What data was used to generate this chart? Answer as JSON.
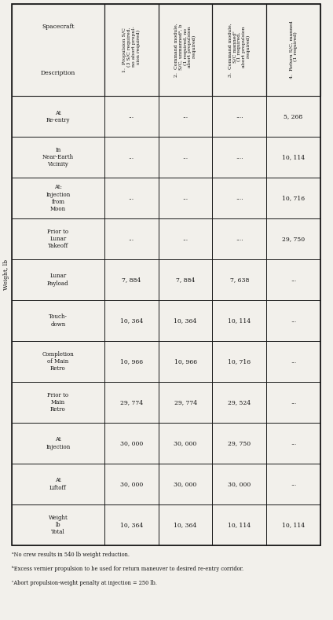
{
  "title_above": "Weight, lb",
  "col_headers": [
    "Spacecraft\nDescription",
    "Weight\nlb\nTotal",
    "At\nLiftoff",
    "At\nInjection",
    "Prior to\nMain\nRetro",
    "Completion\nof Main\nRetro",
    "Touch-\ndown",
    "Lunar\nPayload",
    "Prior to\nLunar\nTakeoff",
    "At:\nInjection\nfrom\nMoon",
    "In\nNear-Earth\nVicinity",
    "At\nRe-entry"
  ],
  "spacecraft_header_top": "Spacecraft",
  "spacecraft_header_bot": "Description",
  "weight_lb_header": "Weight, lb",
  "rows": [
    {
      "num": "1.",
      "desc": "Propulsion S/C\n(3 S/C required,\nno abort propul-\nsion required)",
      "vals": [
        "10, 364",
        "30, 000",
        "30, 000",
        "29, 774",
        "10, 966",
        "10, 364",
        "7, 884",
        "...",
        "...",
        "...",
        "..."
      ]
    },
    {
      "num": "2.",
      "desc": "Command module,\nS/C, unmannedᵃ, b\n(1 required, no\nabort propulsion\nrequired)",
      "vals": [
        "10, 364",
        "30, 000",
        "30, 000",
        "29, 774",
        "10, 966",
        "10, 364",
        "7, 884",
        "...",
        "...",
        "...",
        "..."
      ]
    },
    {
      "num": "3.",
      "desc": "Command module,\nS/C mannedᶜ\n(1 required,\nabort propulsion\nrequired)",
      "vals": [
        "10, 114",
        "30, 000",
        "29, 750",
        "29, 524",
        "10, 716",
        "10, 114",
        "7, 638",
        "...",
        "...",
        "...",
        "..."
      ]
    },
    {
      "num": "4.",
      "desc": "Return S/C, manned\n(1 required)",
      "vals": [
        "10, 114",
        "...",
        "...",
        "...",
        "...",
        "...",
        "...",
        "29, 750",
        "10, 716",
        "10, 114",
        "5, 268"
      ]
    }
  ],
  "footnotes": [
    "ᵃNo crew results in 540 lb weight reduction.",
    "ᵇExcess vernier propulsion to be used for return maneuver to desired re-entry corridor.",
    "ᶜAbort propulsion-weight penalty at injection = 250 lb."
  ],
  "bg_color": "#f2f0eb",
  "line_color": "#1a1a1a",
  "text_color": "#111111"
}
